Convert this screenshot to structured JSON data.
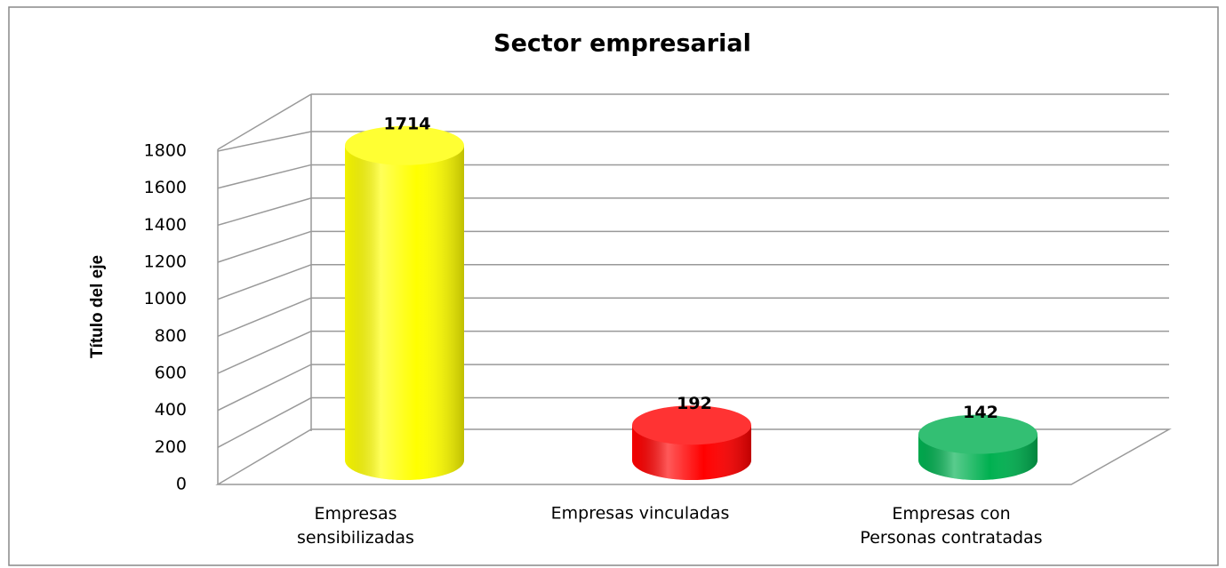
{
  "chart_data": {
    "type": "bar",
    "title": "Sector empresarial",
    "y_label": "Título del eje",
    "categories": [
      "Empresas\nsensibilizadas",
      "Empresas vinculadas",
      "Empresas con\nPersonas contratadas"
    ],
    "values": [
      1714,
      192,
      142
    ],
    "colors": [
      "#ffff00",
      "#ff0000",
      "#00b050"
    ],
    "ylim": [
      0,
      1800
    ],
    "yticks": [
      0,
      200,
      400,
      600,
      800,
      1000,
      1200,
      1400,
      1600,
      1800
    ],
    "grid": true
  }
}
